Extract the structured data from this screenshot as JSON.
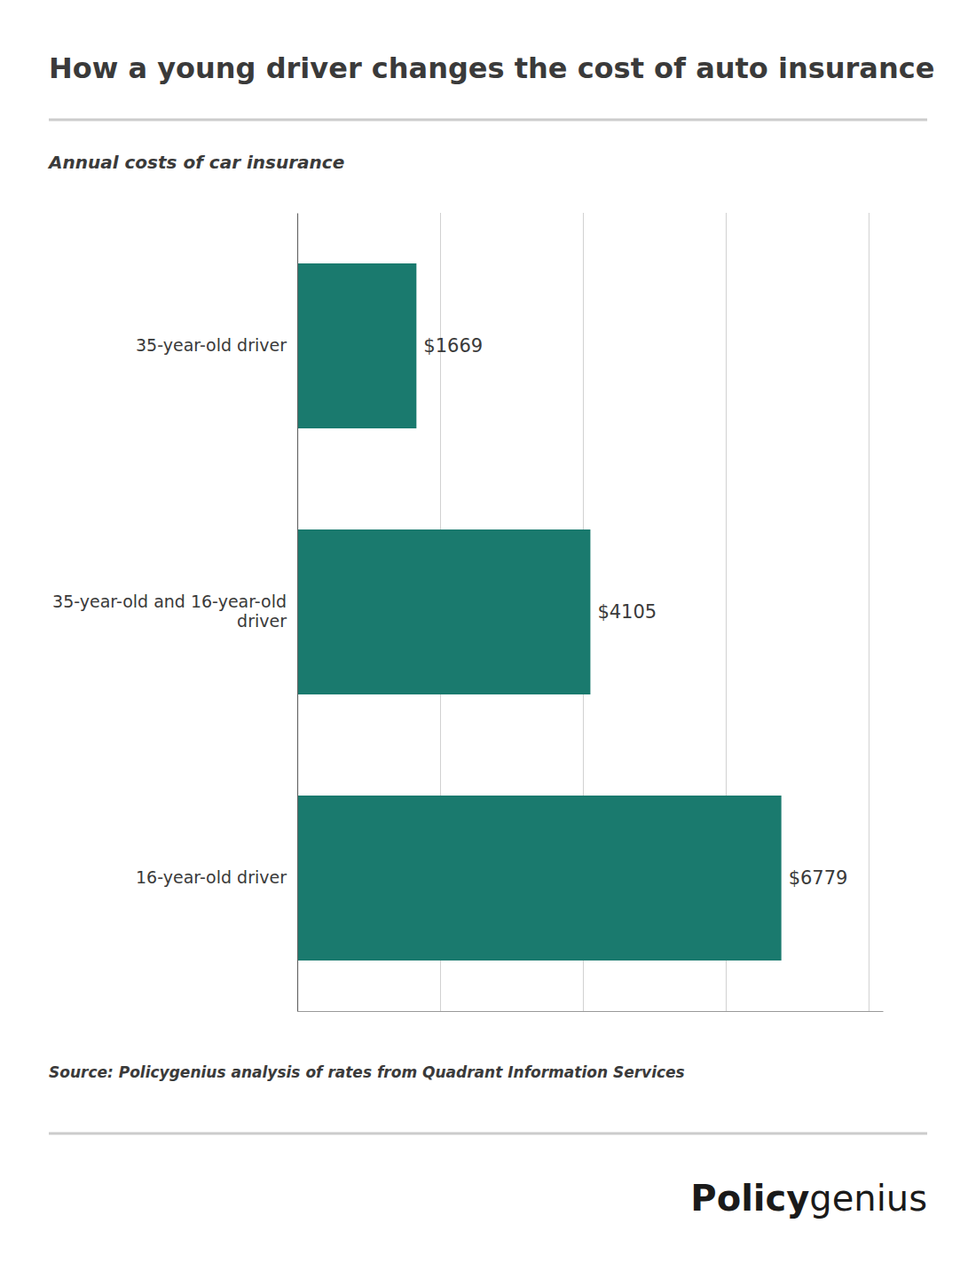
{
  "chart_data": {
    "type": "bar",
    "orientation": "horizontal",
    "title": "How a young driver changes the cost of auto insurance",
    "subtitle": "Annual costs of car insurance",
    "categories": [
      "35-year-old driver",
      "35-year-old and 16-year-old\ndriver",
      "16-year-old driver"
    ],
    "values": [
      1669,
      4105,
      6779
    ],
    "value_labels": [
      "$1669",
      "$4105",
      "$6779"
    ],
    "data_labels": true,
    "color": "#1a7a6e",
    "xlim": [
      0,
      8200
    ],
    "xticks": [
      2000,
      4000,
      6000,
      8000
    ],
    "grid": true,
    "tick_labels": "y",
    "annotations": [
      "Source: Policygenius analysis of rates from Quadrant Information Services",
      "Policy",
      "genius"
    ]
  }
}
